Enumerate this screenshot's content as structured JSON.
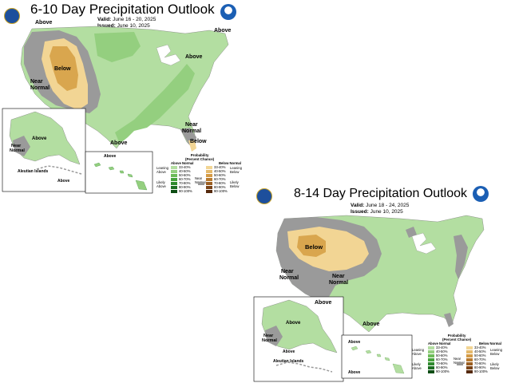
{
  "panel_610": {
    "title": "6-10 Day Precipitation Outlook",
    "valid_label": "Valid:",
    "valid_value": "June 16 - 20, 2025",
    "issued_label": "Issued:",
    "issued_value": "June 10, 2025",
    "labels": {
      "above_nw": "Above",
      "above_ne": "Above",
      "above_east": "Above",
      "below": "Below",
      "near_normal_west": "Near\nNormal",
      "above_south": "Above",
      "near_normal_fl": "Near\nNormal",
      "below_fl": "Below",
      "ak_above": "Above",
      "ak_near_normal": "Near\nNormal",
      "aleutian": "Aleutian Islands",
      "ak_above_2": "Above",
      "hi_above": "Above"
    }
  },
  "panel_814": {
    "title": "8-14 Day Precipitation Outlook",
    "valid_label": "Valid:",
    "valid_value": "June 18 - 24, 2025",
    "issued_label": "Issued:",
    "issued_value": "June 10, 2025",
    "labels": {
      "below": "Below",
      "near_normal_west": "Near\nNormal",
      "near_normal_center": "Near\nNormal",
      "above_south": "Above",
      "above_tx": "Above",
      "ak_above": "Above",
      "ak_near_normal": "Near\nNormal",
      "ak_above_2": "Above",
      "aleutian": "Aleutian Islands",
      "hi_above": "Above",
      "hi_above_2": "Above"
    }
  },
  "legend": {
    "title": "Probability\n(Percent Chance)",
    "above_header": "Above Normal",
    "below_header": "Below Normal",
    "leaning_above": "Leaning\nAbove",
    "likely_above": "Likely\nAbove",
    "near_normal": "Near\nNormal",
    "leaning_below": "Leaning\nBelow",
    "likely_below": "Likely\nBelow",
    "above_ranges": [
      "33-40%",
      "40-50%",
      "50-60%",
      "60-70%",
      "70-80%",
      "80-90%",
      "90-100%"
    ],
    "below_ranges": [
      "33-40%",
      "40-50%",
      "50-60%",
      "60-70%",
      "70-80%",
      "80-90%",
      "90-100%"
    ],
    "above_colors": [
      "#b3dea1",
      "#94cf7f",
      "#6cbb58",
      "#45a33b",
      "#2f8a2e",
      "#1c6e22",
      "#0d4d14"
    ],
    "below_colors": [
      "#f2d594",
      "#e5b96b",
      "#d49a45",
      "#b97b2f",
      "#9a5e22",
      "#7a4418",
      "#55290d"
    ],
    "near_color": "#9a9a9a"
  },
  "colors": {
    "leaning_above": "#b3dea1",
    "above_40": "#94cf7f",
    "near_normal": "#9a9a9a",
    "leaning_below": "#f2d594",
    "below_40": "#d9a64e",
    "water": "#ffffff"
  }
}
